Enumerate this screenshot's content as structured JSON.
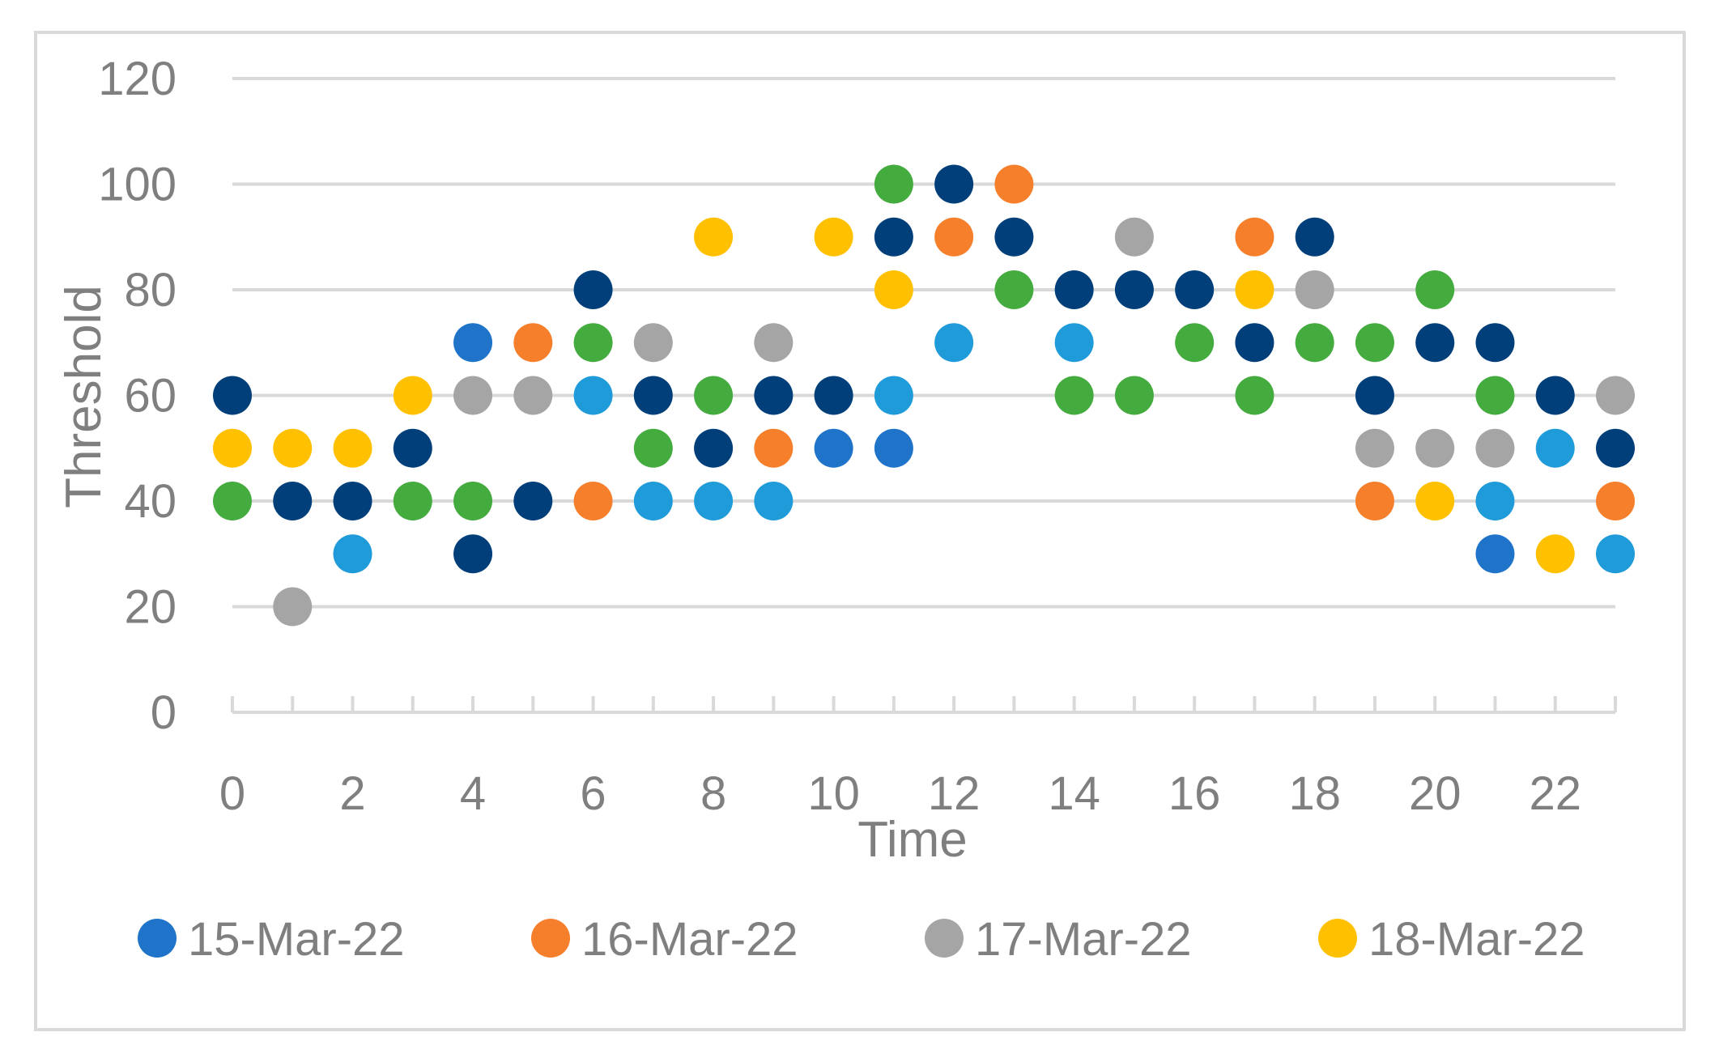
{
  "chart_data": {
    "type": "scatter",
    "title": "",
    "xlabel": "Time",
    "ylabel": "Threshold",
    "xlim": [
      0,
      23
    ],
    "ylim": [
      0,
      120
    ],
    "x_ticks": [
      0,
      2,
      4,
      6,
      8,
      10,
      12,
      14,
      16,
      18,
      20,
      22
    ],
    "y_ticks": [
      0,
      20,
      40,
      60,
      80,
      100,
      120
    ],
    "grid": "horizontal",
    "legend_position": "bottom",
    "legend": [
      {
        "label": "15-Mar-22",
        "color": "#1f74c9"
      },
      {
        "label": "16-Mar-22",
        "color": "#f57f2a"
      },
      {
        "label": "17-Mar-22",
        "color": "#a5a5a5"
      },
      {
        "label": "18-Mar-22",
        "color": "#ffc000"
      }
    ],
    "series": [
      {
        "name": "15-Mar-22",
        "color": "#1f74c9",
        "points": [
          [
            4,
            70
          ],
          [
            10,
            50
          ],
          [
            11,
            50
          ],
          [
            21,
            30
          ]
        ]
      },
      {
        "name": "16-Mar-22",
        "color": "#f57f2a",
        "points": [
          [
            5,
            70
          ],
          [
            6,
            40
          ],
          [
            9,
            50
          ],
          [
            12,
            90
          ],
          [
            13,
            100
          ],
          [
            17,
            90
          ],
          [
            19,
            40
          ],
          [
            23,
            40
          ]
        ]
      },
      {
        "name": "17-Mar-22",
        "color": "#a5a5a5",
        "points": [
          [
            1,
            20
          ],
          [
            4,
            60
          ],
          [
            5,
            60
          ],
          [
            7,
            70
          ],
          [
            9,
            70
          ],
          [
            15,
            90
          ],
          [
            18,
            80
          ],
          [
            19,
            50
          ],
          [
            20,
            50
          ],
          [
            21,
            50
          ],
          [
            23,
            60
          ]
        ]
      },
      {
        "name": "18-Mar-22",
        "color": "#ffc000",
        "points": [
          [
            0,
            50
          ],
          [
            1,
            50
          ],
          [
            2,
            50
          ],
          [
            3,
            60
          ],
          [
            8,
            90
          ],
          [
            10,
            90
          ],
          [
            11,
            80
          ],
          [
            17,
            80
          ],
          [
            20,
            40
          ],
          [
            22,
            30
          ]
        ]
      },
      {
        "color": "#1f9bd9",
        "points": [
          [
            2,
            30
          ],
          [
            6,
            60
          ],
          [
            7,
            40
          ],
          [
            8,
            40
          ],
          [
            9,
            40
          ],
          [
            11,
            60
          ],
          [
            12,
            70
          ],
          [
            14,
            70
          ],
          [
            21,
            40
          ],
          [
            22,
            50
          ],
          [
            23,
            30
          ]
        ]
      },
      {
        "color": "#44ab3f",
        "points": [
          [
            0,
            40
          ],
          [
            3,
            40
          ],
          [
            4,
            40
          ],
          [
            6,
            70
          ],
          [
            7,
            50
          ],
          [
            8,
            60
          ],
          [
            11,
            100
          ],
          [
            13,
            80
          ],
          [
            14,
            60
          ],
          [
            15,
            60
          ],
          [
            16,
            70
          ],
          [
            17,
            60
          ],
          [
            18,
            70
          ],
          [
            19,
            70
          ],
          [
            20,
            80
          ],
          [
            21,
            60
          ]
        ]
      },
      {
        "color": "#013f7a",
        "points": [
          [
            0,
            60
          ],
          [
            1,
            40
          ],
          [
            2,
            40
          ],
          [
            3,
            50
          ],
          [
            4,
            30
          ],
          [
            5,
            40
          ],
          [
            6,
            80
          ],
          [
            7,
            60
          ],
          [
            8,
            50
          ],
          [
            9,
            60
          ],
          [
            10,
            60
          ],
          [
            11,
            90
          ],
          [
            12,
            100
          ],
          [
            13,
            90
          ],
          [
            14,
            80
          ],
          [
            15,
            80
          ],
          [
            16,
            80
          ],
          [
            17,
            70
          ],
          [
            18,
            90
          ],
          [
            19,
            60
          ],
          [
            20,
            70
          ],
          [
            21,
            70
          ],
          [
            22,
            60
          ],
          [
            23,
            50
          ]
        ]
      }
    ]
  }
}
